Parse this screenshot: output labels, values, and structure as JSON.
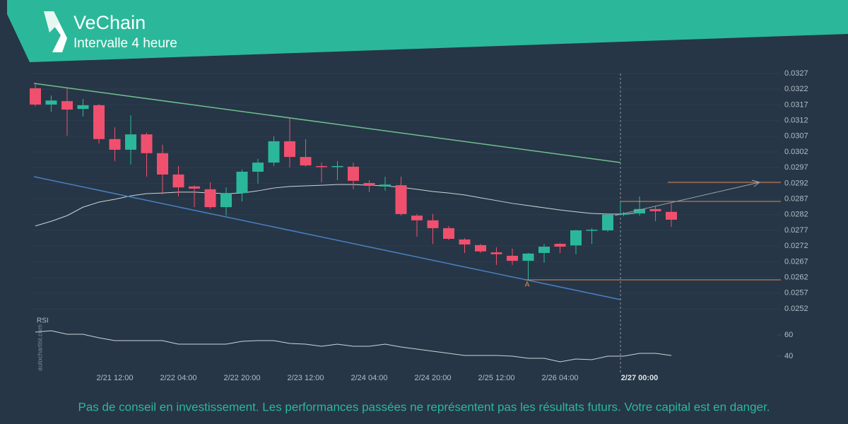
{
  "chart_data": {
    "type": "candlestick",
    "title": "VeChain",
    "subtitle": "Intervalle 4 heure",
    "categories": [
      null,
      null,
      null,
      null,
      null,
      "2/21 12:00",
      null,
      null,
      null,
      "2/22 04:00",
      null,
      null,
      null,
      "2/22 20:00",
      null,
      null,
      null,
      "2/23 12:00",
      null,
      null,
      null,
      "2/24 04:00",
      null,
      null,
      null,
      "2/24 20:00",
      null,
      null,
      null,
      "2/25 12:00",
      null,
      null,
      null,
      "2/26 04:00",
      null,
      null,
      null,
      null,
      "2/27 00:00",
      null,
      null
    ],
    "open": [
      0.03223,
      0.03171,
      0.03182,
      0.03157,
      0.03169,
      0.03061,
      0.03027,
      0.03076,
      0.03016,
      0.02948,
      0.0291,
      0.02901,
      0.02844,
      0.02889,
      0.02957,
      0.02986,
      0.03054,
      0.03004,
      0.02975,
      0.02973,
      0.02973,
      0.02921,
      0.0291,
      0.02914,
      0.02817,
      0.02802,
      0.02777,
      0.02741,
      0.02723,
      0.027,
      0.02689,
      0.02673,
      0.02698,
      0.02727,
      0.02722,
      0.0277,
      0.0277,
      0.0282,
      0.02824,
      0.02838,
      0.02829
    ],
    "high": [
      0.03239,
      0.032,
      0.03223,
      0.03189,
      0.03173,
      0.03099,
      0.03137,
      0.03081,
      0.03043,
      0.02975,
      0.02914,
      0.02923,
      0.02907,
      0.02964,
      0.02998,
      0.0307,
      0.03128,
      0.03061,
      0.02986,
      0.02991,
      0.02986,
      0.0293,
      0.02941,
      0.02941,
      0.02822,
      0.02822,
      0.02784,
      0.02745,
      0.02727,
      0.02716,
      0.02712,
      0.02698,
      0.02727,
      0.0273,
      0.02772,
      0.02777,
      0.02824,
      0.02829,
      0.02878,
      0.02847,
      0.02856
    ],
    "low": [
      0.03166,
      0.03148,
      0.03072,
      0.03133,
      0.03047,
      0.02991,
      0.0298,
      0.02941,
      0.02885,
      0.02878,
      0.02844,
      0.02838,
      0.02817,
      0.02862,
      0.02919,
      0.02975,
      0.02971,
      0.02973,
      0.02923,
      0.0293,
      0.02901,
      0.02892,
      0.02896,
      0.02817,
      0.0275,
      0.02727,
      0.02739,
      0.02698,
      0.02698,
      0.0266,
      0.0266,
      0.0261,
      0.02667,
      0.02698,
      0.02694,
      0.02727,
      0.02766,
      0.02815,
      0.02817,
      0.02799,
      0.02781
    ],
    "close": [
      0.03171,
      0.03184,
      0.03155,
      0.03169,
      0.03061,
      0.03027,
      0.03076,
      0.03016,
      0.02948,
      0.02907,
      0.02903,
      0.02844,
      0.02889,
      0.02957,
      0.02986,
      0.03054,
      0.03004,
      0.02977,
      0.02973,
      0.02975,
      0.02928,
      0.02912,
      0.02916,
      0.02822,
      0.02802,
      0.02777,
      0.02743,
      0.02725,
      0.02703,
      0.02694,
      0.02673,
      0.02696,
      0.02718,
      0.02718,
      0.0277,
      0.02772,
      0.0282,
      0.02824,
      0.02838,
      0.02831,
      0.02804
    ],
    "up_color": "#2bb89a",
    "down_color": "#f0506e",
    "moving_average": {
      "color": "#cfd4d9",
      "values": [
        0.02784,
        0.02799,
        0.02817,
        0.02844,
        0.0286,
        0.02869,
        0.0288,
        0.02887,
        0.02889,
        0.02892,
        0.02892,
        0.02889,
        0.02887,
        0.02889,
        0.02896,
        0.02905,
        0.0291,
        0.02912,
        0.02914,
        0.02916,
        0.02916,
        0.02914,
        0.02912,
        0.02907,
        0.02901,
        0.02894,
        0.02889,
        0.02883,
        0.02874,
        0.02865,
        0.02856,
        0.02849,
        0.02842,
        0.02835,
        0.02829,
        0.02824,
        0.02822,
        0.02822,
        0.02826,
        null,
        null
      ]
    },
    "ylim": [
      0.0251,
      0.0328
    ],
    "yticks": [
      0.0327,
      0.0322,
      0.0317,
      0.0312,
      0.0307,
      0.0302,
      0.0297,
      0.0292,
      0.0287,
      0.0282,
      0.0277,
      0.0272,
      0.0267,
      0.0262,
      0.0257,
      0.0252
    ],
    "grid": true,
    "pattern_label": "A",
    "rsi": {
      "label": "RSI",
      "color": "#cfd4d9",
      "values": [
        62.7,
        64,
        60.7,
        60.7,
        57.3,
        54.7,
        54.7,
        54.7,
        54.7,
        51.3,
        51.3,
        51.3,
        51.3,
        54,
        54.7,
        54.7,
        52,
        51.3,
        49.3,
        51.3,
        49.3,
        49.3,
        51.3,
        48.7,
        46.7,
        44.7,
        42.7,
        40.7,
        40.7,
        40.7,
        40,
        38,
        38,
        34.7,
        37.3,
        36.7,
        40,
        40,
        42.7,
        42.7,
        40.7
      ],
      "ylim": [
        29,
        76
      ],
      "yticks": [
        40,
        60
      ]
    },
    "watermark": "autochartist.com",
    "disclaimer": "Pas de conseil en investissement. Les performances passées ne représentent pas les résultats futurs. Votre capital est en danger."
  }
}
